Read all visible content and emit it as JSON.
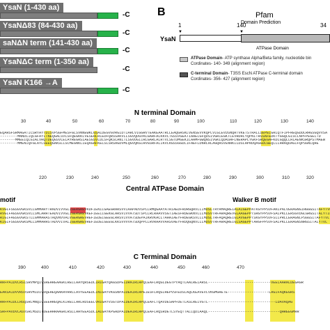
{
  "panel_a": {
    "constructs": [
      {
        "label": "YsaN (1-430 aa)",
        "cterm": "-C"
      },
      {
        "label": "YsaNΔ83 (84-430 aa)",
        "cterm": "-C"
      },
      {
        "label": "saNΔN term (141-430 aa)",
        "cterm": "-C"
      },
      {
        "label": "YsaNΔC term (1-350 aa)",
        "cterm": "-C"
      },
      {
        "label": "YsaN  K166 →A",
        "cterm": "-C"
      }
    ]
  },
  "panel_b": {
    "letter": "B",
    "pfam": "Pfam",
    "domain_prediction": "Domain Prediction",
    "protein": "YsaN",
    "pos_start": "1",
    "pos_mid": "140",
    "pos_end": "34",
    "atpase_domain": "ATPase Domain",
    "legend": [
      {
        "title": "ATPase Domain",
        "desc": "- ATP synthase Alpha/Beta family, nucleotide bin",
        "coords": "Cordinates- 140- 349 (alignment region)",
        "color": "#c8c8c8"
      },
      {
        "title": "C-terminal Domain",
        "desc": "- T3SS EscN ATPase C-terminal domain",
        "coords": "Cordinates- 356- 427 (alignment region)",
        "color": "#555555"
      }
    ]
  },
  "alignments": [
    {
      "title": "N terminal Domain",
      "ruler": [
        "30",
        "40",
        "50",
        "60",
        "70",
        "80",
        "90",
        "100",
        "110",
        "120",
        "130",
        "140"
      ],
      "motifs": [],
      "rows": [
        "EQARSFSRMAGATICSRYAYTDISVPSGFMESFGLSVNNEWKLGSALDEGVGVRGIDTIARLVIGGRVTEAKEAATRLLEAQGHSKLVENSEVVKQPLVLGLEVDSNQRTVKETSTRALLSEPELGRLQTFIPFREQGDDLRHGSGQVVSA",
        "--------MNNDLIQLGFAYITNEQGALSVLSFQEGKKLVESEHLRLEDFQRSSAKVLLSGVQDGVKLGARFALKKVLTGSSVGEATIAAELGFQDSIVGRIEGKTLEVRDHLYQPNITRSSAFEDKTYGGQLGISCLNPFPEGELTD",
        "-------MMEEIQLGIALVRQTDEQGSVLELAYREGRSIAESGSVLDLSFQKSCANLTLSGVDGIIRLGARLALRTVLSGTDMGEKILAAMFGWQNSIVGKLQDASHFLNERAPLYGKFSRQEGAFKDLGQQLLHIAENKSRQPSTMAEW",
        "--------MMENIQFGLAYLSEEQGAKSLLSCMEGNKLIEQAGAFKELSLSRSAGDVMLQGVQKGIRVGSRFALIKVLKGSSGGDLIFAEFLDNRLHLAGQHSVENHKILDSLHPRDQAGGDLGEQLLLHRAQDAGIFQPSGNLQHE"
      ]
    },
    {
      "title": "Central ATPase Domain",
      "ruler": [
        "220",
        "230",
        "240",
        "250",
        "260",
        "270",
        "280",
        "290",
        "300",
        "310",
        "320"
      ],
      "motifs": [
        "motif",
        "Walker B motif"
      ],
      "rows": [
        "KVGLFSGSGVGKSVLLGMMARYTRADVIVVGLIGERGREVKDFIENILGAEGRARSVVIAAPADVSPLLRMQGAAYATRIAEDFRDRGQHVLLIMDSLTRYAMAQREIALAIGEPPATKGYPPSVFAKLPALVERAGNGIHGGGSITAFYTVL",
        "RVGLFAGSGVGKSVLLSMLARHTEADVIVVGLIGERGREVKEFIEELLGEKGLARSVIVVATSDTSPLLRLRAAVVSGTIAESFRDEGKNVLLLMDSVTRFARAQREVGLAAGEPPTSRGYPPSVFSALPKLLERSGVDGLGRGSITALYTIL",
        "RIGIFAGSGVGKSTLLGMMARASTAQVNVVALVGERGREVREFIEDELGEEGLRRSVIVVATSDEPAIKRVKACLTAHAIAEYFRDEGKSVLLLMDSLTRFAQAQREIGLAVGEPPTSKGYPPSVFSLLPRLLERAGNLPSGGSITAFYTVL",
        "KIGIFSGSGVGKSMLLSMMARHSTADVVIVALIGERGREVREFIEDELGEEGLKKSVVVVATSDQPPLLRVRAAVVAASVAEYFRDQGQNVLLLMDSVTRFARAQREIGLSAGEPPTARGFPPSVFSALPKLLERAGNSNRGSITALYTVL"
      ]
    },
    {
      "title": "C Terminal Domain",
      "ruler": [
        "390",
        "400",
        "410",
        "420",
        "430",
        "440",
        "450",
        "460",
        "470"
      ],
      "motifs": [],
      "rows": [
        "RRFPAIDVLRSISRVMPQIVSREHREAAGKLRELLAAYQRSEDLIRIGAYQAGSDPELDRAIRLHPQLEAFLRQGLDEGTPYAQTLAALREIARSL-----------------------------VEELAARALDEGAGR",
        "EAKSAIDVVRSVSRVMIDIVDQEHEQAAKRVRRLLAVYEEAEDLINLGAYVKGSNPAIDEAIRLHPEIESFLRQGIHEPVSFEDSLAQLKEAVEVLVKGMGHETE-------------------LAGIFAQKEGRS",
        "RRFPAIDLLHSQSRLMNQIVSEEHREQALKIRELLARLRDSEELVRIGAYVSGTDPALDEAIRLHPQLEAFLTQAVDESAPFDETLASLREIVGTL-------------------------------LDAVAQAG",
        "SRFPAVDVLASVSRLMSDITDEEHHRAAGRLRSLLAHYEEASDLIALGAYKPGADPAIDEAIRLHPQLEAFLRQSRDETLSYEQTTALLQDIAAQL---------------------------------QHREEGMRR"
      ]
    }
  ],
  "colors": {
    "highlight": "#f3e94a",
    "conserved": "#dc2828",
    "grey_bar": "#7f7f7f",
    "green_bar": "#27b24a",
    "label_box": "#6f6f6f"
  }
}
